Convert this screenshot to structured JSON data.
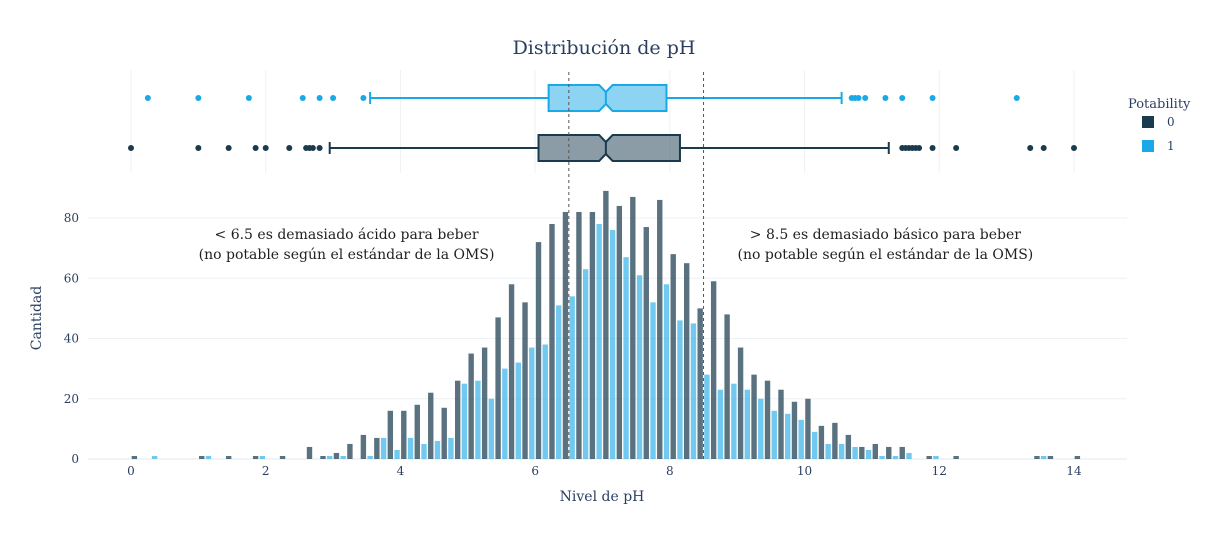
{
  "chart_data": {
    "type": "bar",
    "title": "Distribución de pH",
    "xlabel": "Nivel de pH",
    "ylabel": "Cantidad",
    "xlim": [
      -0.8,
      14.8
    ],
    "ylim": [
      0,
      92
    ],
    "x_ticks": [
      0,
      2,
      4,
      6,
      8,
      10,
      12,
      14
    ],
    "y_ticks": [
      0,
      20,
      40,
      60,
      80
    ],
    "grid": true,
    "legend": {
      "title": "Potability",
      "position": "right"
    },
    "bin_width": 0.2,
    "bin_starts": [
      0.0,
      0.2,
      0.4,
      0.6,
      0.8,
      1.0,
      1.2,
      1.4,
      1.6,
      1.8,
      2.0,
      2.2,
      2.4,
      2.6,
      2.8,
      3.0,
      3.2,
      3.4,
      3.6,
      3.8,
      4.0,
      4.2,
      4.4,
      4.6,
      4.8,
      5.0,
      5.2,
      5.4,
      5.6,
      5.8,
      6.0,
      6.2,
      6.4,
      6.6,
      6.8,
      7.0,
      7.2,
      7.4,
      7.6,
      7.8,
      8.0,
      8.2,
      8.4,
      8.6,
      8.8,
      9.0,
      9.2,
      9.4,
      9.6,
      9.8,
      10.0,
      10.2,
      10.4,
      10.6,
      10.8,
      11.0,
      11.2,
      11.4,
      11.6,
      11.8,
      12.0,
      12.2,
      12.4,
      12.6,
      12.8,
      13.0,
      13.2,
      13.4,
      13.6,
      13.8,
      14.0
    ],
    "series": [
      {
        "name": "0",
        "color": "#1a3a4e",
        "values": [
          1,
          0,
          0,
          0,
          0,
          1,
          0,
          1,
          0,
          1,
          0,
          1,
          0,
          4,
          1,
          2,
          5,
          8,
          7,
          16,
          16,
          18,
          22,
          17,
          26,
          35,
          37,
          47,
          58,
          52,
          72,
          78,
          82,
          82,
          82,
          89,
          84,
          87,
          77,
          86,
          68,
          65,
          50,
          59,
          48,
          37,
          28,
          26,
          23,
          19,
          20,
          11,
          12,
          8,
          4,
          5,
          4,
          4,
          0,
          1,
          0,
          1,
          0,
          0,
          0,
          0,
          0,
          1,
          1,
          0,
          1
        ]
      },
      {
        "name": "1",
        "color": "#1ba8e6",
        "values": [
          0,
          1,
          0,
          0,
          0,
          1,
          0,
          0,
          0,
          1,
          0,
          0,
          0,
          0,
          1,
          1,
          0,
          1,
          7,
          3,
          7,
          5,
          6,
          7,
          25,
          26,
          20,
          30,
          32,
          37,
          38,
          51,
          54,
          63,
          78,
          76,
          67,
          61,
          52,
          58,
          46,
          45,
          28,
          23,
          25,
          23,
          20,
          16,
          15,
          13,
          9,
          5,
          5,
          4,
          3,
          1,
          1,
          2,
          0,
          1,
          0,
          0,
          0,
          0,
          0,
          0,
          0,
          1,
          0,
          0,
          0
        ]
      }
    ],
    "box_plots": [
      {
        "name": "1",
        "color": "#1ba8e6",
        "q1": 6.2,
        "median": 7.05,
        "q3": 7.95,
        "whisker_low": 3.55,
        "whisker_high": 10.55,
        "notch_low": 6.95,
        "notch_high": 7.15,
        "outliers": [
          0.25,
          1.0,
          1.75,
          2.55,
          2.8,
          3.0,
          3.45,
          10.7,
          10.75,
          10.8,
          10.9,
          11.2,
          11.45,
          11.9,
          13.15
        ]
      },
      {
        "name": "0",
        "color": "#1a3a4e",
        "q1": 6.05,
        "median": 7.05,
        "q3": 8.15,
        "whisker_low": 2.95,
        "whisker_high": 11.25,
        "notch_low": 6.95,
        "notch_high": 7.15,
        "outliers": [
          0.0,
          1.0,
          1.45,
          1.85,
          2.0,
          2.35,
          2.6,
          2.65,
          2.7,
          2.8,
          11.45,
          11.5,
          11.55,
          11.6,
          11.65,
          11.7,
          11.9,
          12.25,
          13.35,
          13.55,
          14.0
        ]
      }
    ],
    "reference_lines": [
      6.5,
      8.5
    ],
    "annotations": [
      {
        "x": 3.2,
        "y": 73,
        "lines": [
          "< 6.5 es demasiado ácido para beber",
          "(no potable según el estándar de la OMS)"
        ]
      },
      {
        "x": 11.2,
        "y": 73,
        "lines": [
          "> 8.5 es demasiado básico para beber",
          "(no potable según el estándar de la OMS)"
        ]
      }
    ]
  }
}
